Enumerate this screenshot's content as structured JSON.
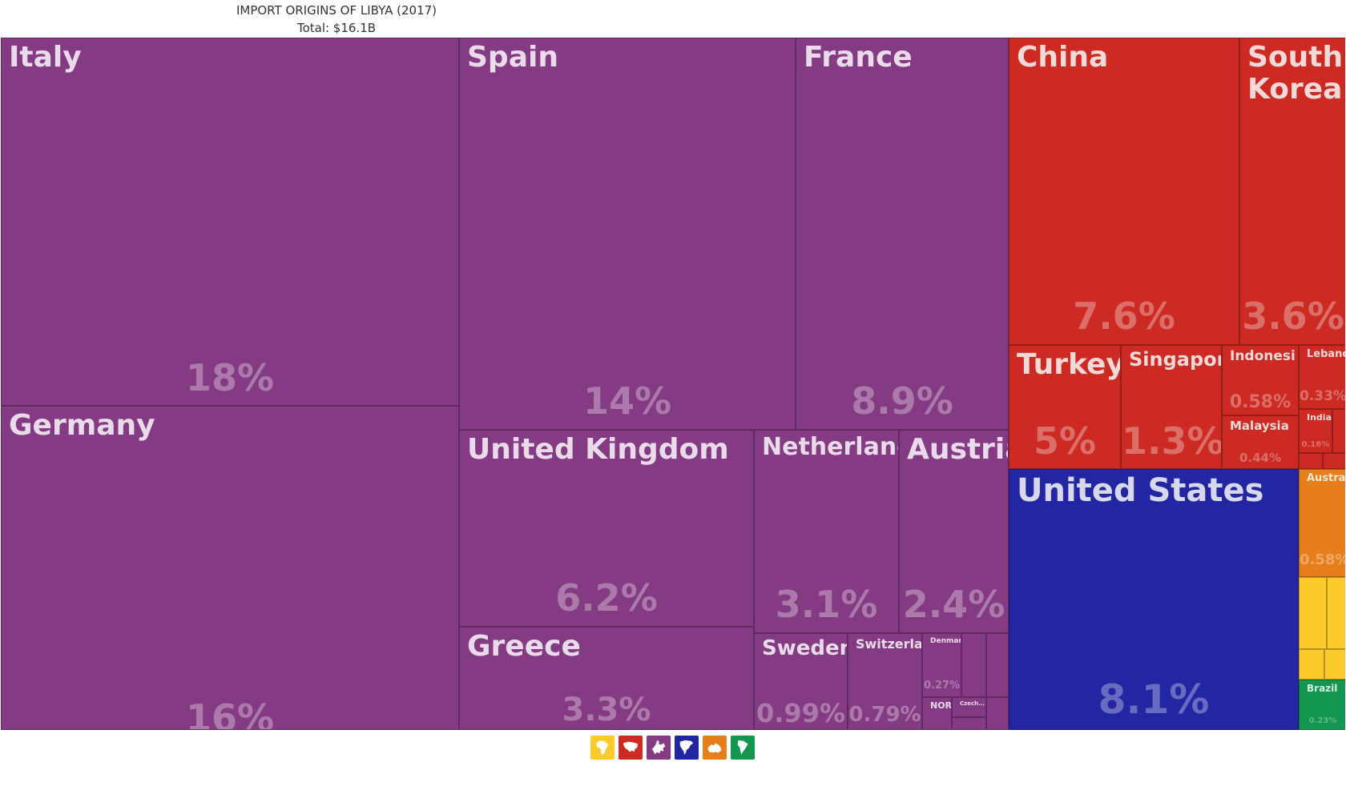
{
  "header": {
    "title": "IMPORT ORIGINS OF LIBYA (2017)",
    "subtitle": "Total: $16.1B"
  },
  "colors": {
    "europe": "#853a84",
    "asia": "#cc2a22",
    "north_america": "#2226a3",
    "oceania": "#e67e1b",
    "africa": "#fcca2b",
    "south_america": "#13964f"
  },
  "legend": [
    {
      "region": "africa",
      "icon": "africa-icon",
      "color": "#fcca2b"
    },
    {
      "region": "asia",
      "icon": "asia-icon",
      "color": "#cc2a22"
    },
    {
      "region": "europe",
      "icon": "europe-icon",
      "color": "#853a84"
    },
    {
      "region": "north_america",
      "icon": "north-america-icon",
      "color": "#2226a3"
    },
    {
      "region": "oceania",
      "icon": "oceania-icon",
      "color": "#e67e1b"
    },
    {
      "region": "south_america",
      "icon": "south-america-icon",
      "color": "#13964f"
    }
  ],
  "chart_data": {
    "type": "treemap",
    "title": "IMPORT ORIGINS OF LIBYA (2017)",
    "subtitle": "Total: $16.1B",
    "items": [
      {
        "name": "Italy",
        "label": "Italy",
        "percent": "18%",
        "value": 18,
        "region": "europe"
      },
      {
        "name": "Germany",
        "label": "Germany",
        "percent": "16%",
        "value": 16,
        "region": "europe"
      },
      {
        "name": "Spain",
        "label": "Spain",
        "percent": "14%",
        "value": 14,
        "region": "europe"
      },
      {
        "name": "France",
        "label": "France",
        "percent": "8.9%",
        "value": 8.9,
        "region": "europe"
      },
      {
        "name": "United Kingdom",
        "label": "United Kingdom",
        "percent": "6.2%",
        "value": 6.2,
        "region": "europe"
      },
      {
        "name": "Greece",
        "label": "Greece",
        "percent": "3.3%",
        "value": 3.3,
        "region": "europe"
      },
      {
        "name": "Netherlands",
        "label": "Netherlands",
        "percent": "3.1%",
        "value": 3.1,
        "region": "europe"
      },
      {
        "name": "Austria",
        "label": "Austria",
        "percent": "2.4%",
        "value": 2.4,
        "region": "europe"
      },
      {
        "name": "Sweden",
        "label": "Sweden",
        "percent": "0.99%",
        "value": 0.99,
        "region": "europe"
      },
      {
        "name": "Switzerland",
        "label": "Switzerlan",
        "percent": "0.79%",
        "value": 0.79,
        "region": "europe"
      },
      {
        "name": "Denmark",
        "label": "Denmark",
        "percent": "0.27%",
        "value": 0.27,
        "region": "europe"
      },
      {
        "name": "NOR",
        "label": "NOR",
        "percent": "",
        "value": 0.12,
        "region": "europe"
      },
      {
        "name": "Czechia",
        "label": "Czech...",
        "percent": "",
        "value": 0.08,
        "region": "europe"
      },
      {
        "name": "China",
        "label": "China",
        "percent": "7.6%",
        "value": 7.6,
        "region": "asia"
      },
      {
        "name": "South Korea",
        "label": "South\nKorea",
        "percent": "3.6%",
        "value": 3.6,
        "region": "asia"
      },
      {
        "name": "Turkey",
        "label": "Turkey",
        "percent": "5%",
        "value": 5,
        "region": "asia"
      },
      {
        "name": "Singapore",
        "label": "Singapore",
        "percent": "1.3%",
        "value": 1.3,
        "region": "asia"
      },
      {
        "name": "Indonesia",
        "label": "Indonesi",
        "percent": "0.58%",
        "value": 0.58,
        "region": "asia"
      },
      {
        "name": "Malaysia",
        "label": "Malaysia",
        "percent": "0.44%",
        "value": 0.44,
        "region": "asia"
      },
      {
        "name": "Lebanon",
        "label": "Lebanon",
        "percent": "0.33%",
        "value": 0.33,
        "region": "asia"
      },
      {
        "name": "India",
        "label": "India",
        "percent": "0.16%",
        "value": 0.16,
        "region": "asia"
      },
      {
        "name": "United States",
        "label": "United States",
        "percent": "8.1%",
        "value": 8.1,
        "region": "north_america"
      },
      {
        "name": "Australia",
        "label": "Australi",
        "percent": "0.58%",
        "value": 0.58,
        "region": "oceania"
      },
      {
        "name": "Brazil",
        "label": "Brazil",
        "percent": "0.23%",
        "value": 0.23,
        "region": "south_america"
      }
    ]
  }
}
